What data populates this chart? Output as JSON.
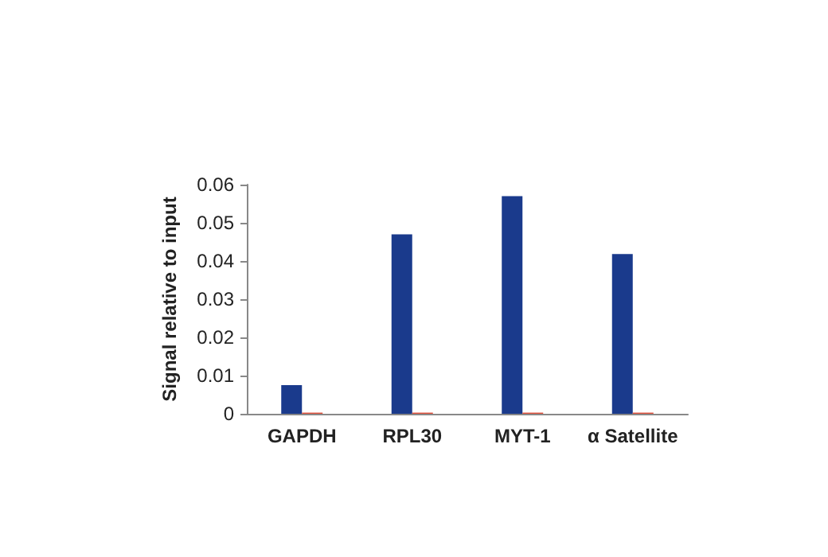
{
  "chart_data": {
    "type": "bar",
    "ylabel": "Signal relative to input",
    "categories": [
      "GAPDH",
      "RPL30",
      "MYT-1",
      "α Satellite"
    ],
    "series": [
      {
        "color": "#1a3a8c",
        "values": [
          0.0075,
          0.047,
          0.057,
          0.0418
        ]
      },
      {
        "color": "#e0503c",
        "values": [
          0.0003,
          0.0003,
          0.0003,
          0.0003
        ]
      }
    ],
    "ylim": [
      0,
      0.06
    ],
    "yticks": [
      0,
      0.01,
      0.02,
      0.03,
      0.04,
      0.05,
      0.06
    ],
    "grid": false
  }
}
